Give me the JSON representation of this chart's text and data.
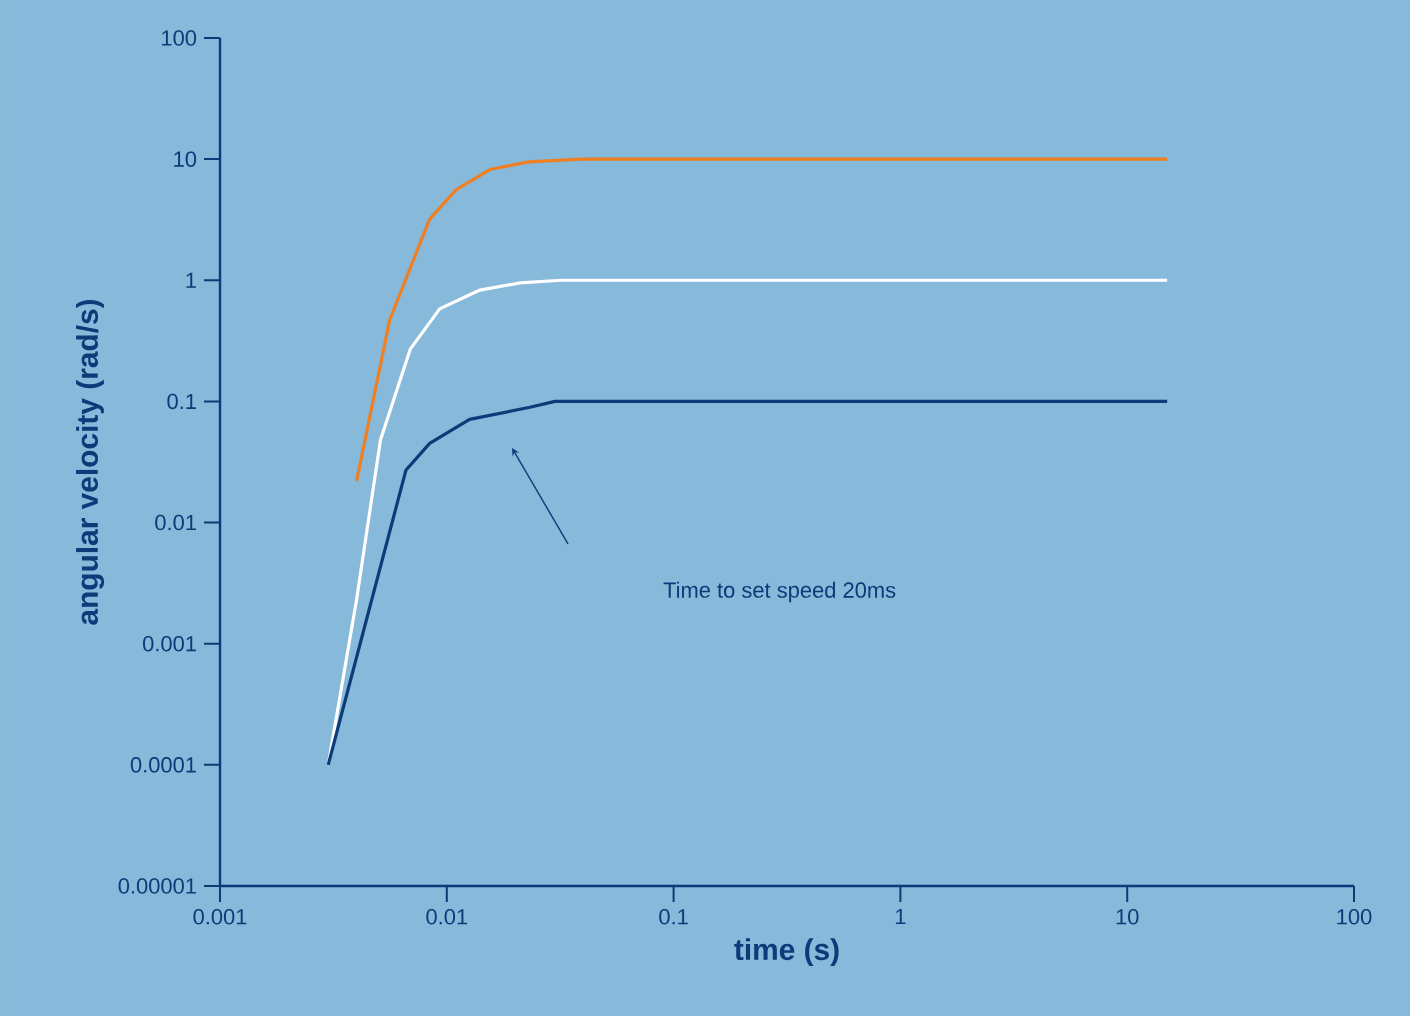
{
  "chart_data": {
    "type": "line",
    "xlabel": "time (s)",
    "ylabel": "angular velocity (rad/s)",
    "log": "xy",
    "grid": false,
    "legend": false,
    "marker": "none",
    "line_style": "solid",
    "xlim": [
      0.001,
      100
    ],
    "ylim": [
      1e-05,
      100
    ],
    "xticks": [
      0.001,
      0.01,
      0.1,
      1,
      10,
      100
    ],
    "yticks": [
      {
        "value": 1e-05,
        "label": "0.00001"
      },
      0.0001,
      0.001,
      0.01,
      0.1,
      1,
      10,
      100
    ],
    "series": [
      {
        "color": "#f07f22",
        "x": [
          0.004,
          0.0056,
          0.0084,
          0.011,
          0.0155,
          0.023,
          0.039,
          15
        ],
        "values": [
          0.022,
          0.47,
          3.2,
          5.6,
          8.2,
          9.5,
          10,
          10
        ]
      },
      {
        "color": "#ffffff",
        "x": [
          0.003,
          0.004,
          0.0051,
          0.0069,
          0.0093,
          0.014,
          0.021,
          0.032,
          15
        ],
        "values": [
          0.0001,
          0.0023,
          0.048,
          0.27,
          0.58,
          0.83,
          0.95,
          1,
          1
        ]
      },
      {
        "color": "#0d3a78",
        "x": [
          0.003,
          0.0066,
          0.0084,
          0.0126,
          0.023,
          0.03,
          15
        ],
        "values": [
          0.0001,
          0.027,
          0.045,
          0.071,
          0.089,
          0.1,
          0.1
        ]
      }
    ],
    "annotations": [
      "Time to set speed 20ms"
    ]
  }
}
